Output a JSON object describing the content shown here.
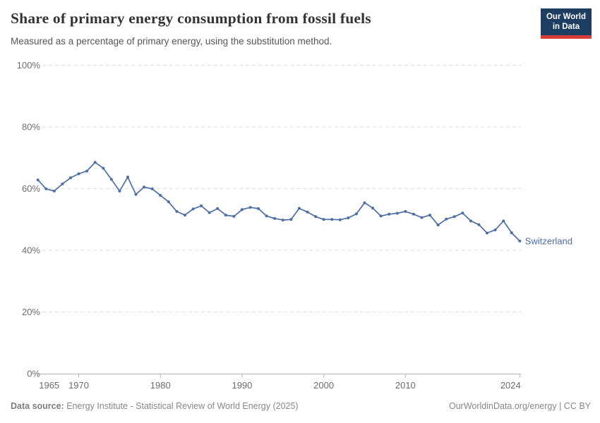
{
  "header": {
    "title": "Share of primary energy consumption from fossil fuels",
    "subtitle": "Measured as a percentage of primary energy, using the substitution method."
  },
  "logo": {
    "line1": "Our World",
    "line2": "in Data",
    "bg_color": "#1d3d63",
    "accent_color": "#d63e3e"
  },
  "chart_data": {
    "type": "line",
    "title": "Share of primary energy consumption from fossil fuels",
    "subtitle": "Measured as a percentage of primary energy, using the substitution method.",
    "entity_label": "Switzerland",
    "line_color": "#4d6da5",
    "grid": "horizontal-dashed",
    "legend_position": "end-of-line-label",
    "xlim": [
      1965,
      2024
    ],
    "ylim": [
      0,
      100
    ],
    "x_ticks": [
      1965,
      1970,
      1980,
      1990,
      2000,
      2010,
      2024
    ],
    "y_ticks": [
      0,
      20,
      40,
      60,
      80,
      100
    ],
    "y_tick_suffix": "%",
    "x": [
      1965,
      1966,
      1967,
      1968,
      1969,
      1970,
      1971,
      1972,
      1973,
      1974,
      1975,
      1976,
      1977,
      1978,
      1979,
      1980,
      1981,
      1982,
      1983,
      1984,
      1985,
      1986,
      1987,
      1988,
      1989,
      1990,
      1991,
      1992,
      1993,
      1994,
      1995,
      1996,
      1997,
      1998,
      1999,
      2000,
      2001,
      2002,
      2003,
      2004,
      2005,
      2006,
      2007,
      2008,
      2009,
      2010,
      2011,
      2012,
      2013,
      2014,
      2015,
      2016,
      2017,
      2018,
      2019,
      2020,
      2021,
      2022,
      2023,
      2024
    ],
    "series": [
      {
        "name": "Switzerland",
        "values": [
          62.8,
          59.9,
          59.2,
          61.5,
          63.5,
          64.8,
          65.7,
          68.5,
          66.6,
          63.0,
          59.2,
          63.7,
          58.1,
          60.5,
          59.9,
          57.8,
          55.7,
          52.6,
          51.4,
          53.4,
          54.4,
          52.2,
          53.5,
          51.4,
          51.0,
          53.2,
          53.9,
          53.5,
          51.1,
          50.3,
          49.8,
          50.0,
          53.6,
          52.4,
          50.9,
          50.0,
          50.0,
          49.9,
          50.5,
          51.8,
          55.4,
          53.7,
          51.1,
          51.7,
          52.0,
          52.6,
          51.7,
          50.6,
          51.4,
          48.2,
          50.1,
          50.9,
          52.1,
          49.5,
          48.3,
          45.6,
          46.6,
          49.5,
          45.7,
          43.0
        ]
      }
    ]
  },
  "footer": {
    "source_label": "Data source:",
    "source_text": " Energy Institute - Statistical Review of World Energy (2025)",
    "credit": "OurWorldinData.org/energy | CC BY"
  }
}
